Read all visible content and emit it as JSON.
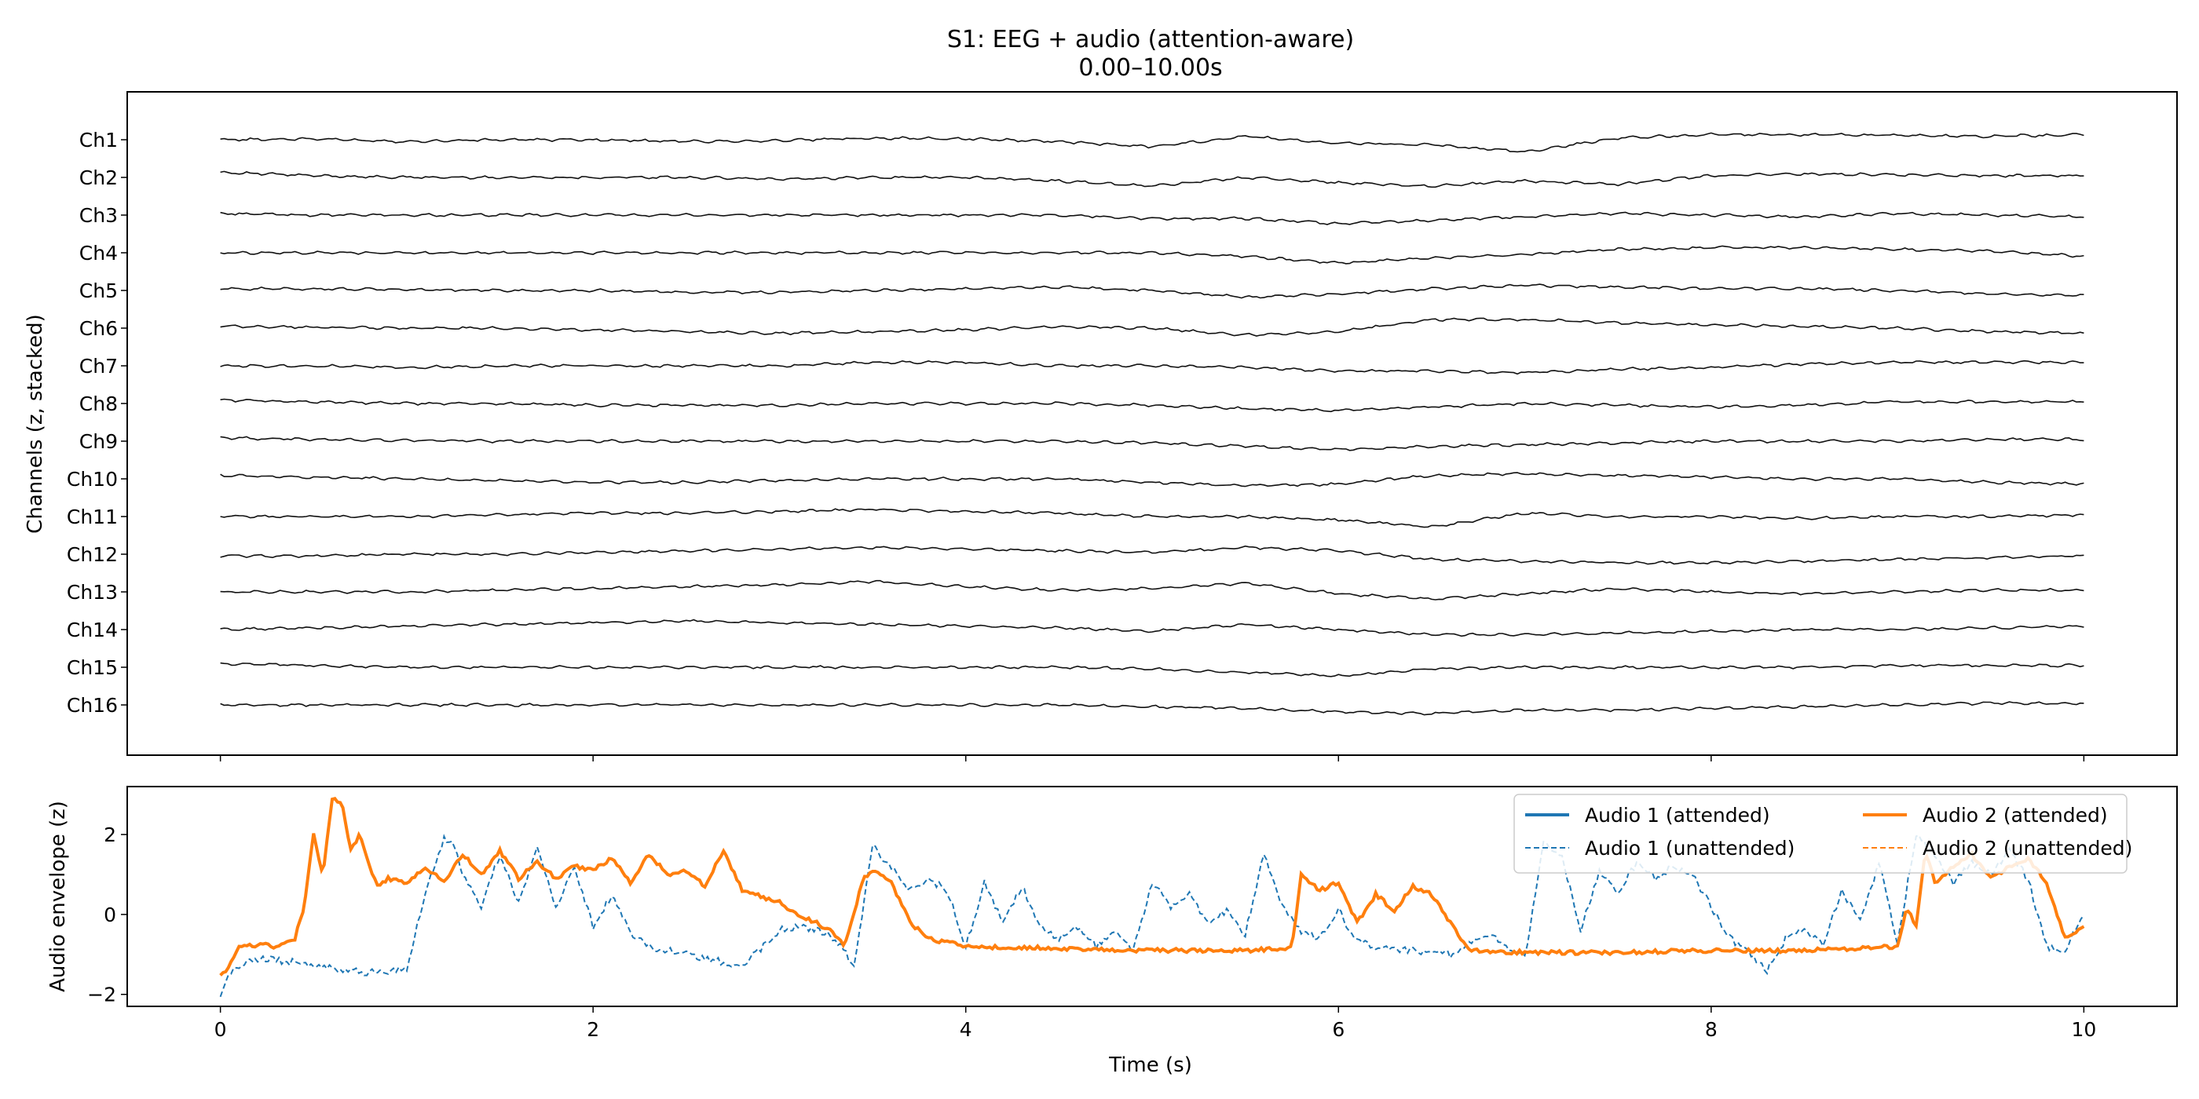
{
  "figure": {
    "title_line1": "S1: EEG + audio (attention-aware)",
    "title_line2": "0.00–10.00s"
  },
  "chart_data": [
    {
      "type": "line",
      "panel": "eeg",
      "title": "S1: EEG + audio (attention-aware)",
      "subtitle": "0.00–10.00s",
      "ylabel": "Channels (z, stacked)",
      "xlim": [
        -0.5,
        10.5
      ],
      "grid": false,
      "channels": [
        "Ch1",
        "Ch2",
        "Ch3",
        "Ch4",
        "Ch5",
        "Ch6",
        "Ch7",
        "Ch8",
        "Ch9",
        "Ch10",
        "Ch11",
        "Ch12",
        "Ch13",
        "Ch14",
        "Ch15",
        "Ch16"
      ],
      "x": [
        0,
        0.5,
        1,
        1.5,
        2,
        2.5,
        3,
        3.5,
        4,
        4.5,
        5,
        5.5,
        6,
        6.5,
        7,
        7.5,
        8,
        8.5,
        9,
        9.5,
        10
      ],
      "traces": [
        [
          0,
          0.05,
          -0.1,
          0,
          0,
          -0.1,
          -0.05,
          0.1,
          0.05,
          -0.1,
          -0.4,
          0.2,
          -0.2,
          -0.3,
          -0.7,
          0.1,
          0.3,
          0.3,
          0.25,
          0.2,
          0.3
        ],
        [
          0.3,
          0.1,
          0,
          0,
          0,
          0,
          -0.1,
          0,
          0,
          -0.2,
          -0.5,
          0,
          -0.3,
          -0.5,
          -0.2,
          -0.4,
          0.1,
          0.2,
          0.15,
          0.1,
          0.1
        ],
        [
          0.1,
          0,
          0,
          0,
          0,
          0,
          0,
          0,
          0,
          0,
          -0.2,
          -0.2,
          -0.5,
          -0.3,
          -0.1,
          0.1,
          0,
          -0.1,
          0.1,
          0,
          -0.1
        ],
        [
          0,
          0,
          0,
          0,
          0,
          0,
          0,
          0,
          0,
          0,
          0,
          -0.2,
          -0.6,
          -0.3,
          -0.1,
          0.2,
          0.3,
          0.3,
          0.2,
          0.1,
          -0.2
        ],
        [
          0.1,
          0.1,
          0.05,
          0,
          0,
          -0.1,
          -0.1,
          0,
          0.1,
          0.2,
          0,
          -0.4,
          -0.2,
          0.1,
          0.3,
          0.2,
          0.1,
          0.1,
          0,
          -0.2,
          -0.3
        ],
        [
          0.1,
          0.05,
          0,
          0,
          -0.1,
          -0.2,
          -0.3,
          -0.2,
          -0.1,
          0.1,
          0,
          -0.4,
          -0.2,
          0.5,
          0.5,
          0.3,
          0.2,
          0.1,
          0,
          -0.2,
          -0.3
        ],
        [
          0,
          0,
          -0.1,
          0,
          0,
          0,
          0,
          0.2,
          0.2,
          0,
          0,
          -0.1,
          -0.3,
          -0.3,
          -0.4,
          -0.2,
          -0.1,
          0.1,
          0.2,
          0.2,
          0.2
        ],
        [
          0.2,
          0.1,
          0,
          0,
          -0.1,
          -0.1,
          -0.1,
          0,
          0,
          0,
          -0.1,
          -0.3,
          -0.4,
          -0.2,
          0,
          -0.1,
          -0.2,
          -0.1,
          0.1,
          0.1,
          0.1
        ],
        [
          0.2,
          0.1,
          0.05,
          0,
          0,
          0,
          0,
          0,
          0,
          0,
          -0.1,
          -0.3,
          -0.5,
          -0.3,
          -0.2,
          -0.1,
          0,
          0,
          0,
          0.1,
          0.1
        ],
        [
          0.2,
          0.1,
          0,
          -0.1,
          -0.2,
          -0.2,
          -0.1,
          0,
          0,
          0,
          -0.2,
          -0.4,
          -0.3,
          0.2,
          0.3,
          0.2,
          0.1,
          0,
          0,
          -0.2,
          -0.3
        ],
        [
          0,
          0,
          0,
          0.1,
          0.2,
          0.2,
          0.3,
          0.4,
          0.3,
          0.2,
          0,
          0,
          -0.2,
          -0.6,
          0.2,
          0,
          0,
          -0.1,
          0,
          0,
          0.1
        ],
        [
          -0.1,
          -0.1,
          0,
          0,
          0.1,
          0.2,
          0.3,
          0.4,
          0.3,
          0.2,
          0.1,
          0.4,
          0.2,
          -0.3,
          -0.4,
          -0.5,
          -0.5,
          -0.4,
          -0.3,
          -0.2,
          -0.1
        ],
        [
          0,
          0,
          0,
          0.1,
          0.2,
          0.3,
          0.4,
          0.6,
          0.3,
          0.1,
          0.2,
          0.5,
          -0.1,
          -0.4,
          -0.1,
          0.2,
          0,
          -0.1,
          0,
          0.1,
          0.1
        ],
        [
          0,
          0.1,
          0.2,
          0.3,
          0.4,
          0.5,
          0.4,
          0.3,
          0.2,
          0.1,
          -0.1,
          0.3,
          0,
          -0.3,
          -0.3,
          -0.2,
          -0.1,
          0,
          0,
          0.1,
          0.2
        ],
        [
          0.2,
          0.1,
          0,
          0,
          0,
          0,
          0,
          0,
          0,
          0,
          -0.1,
          -0.3,
          -0.5,
          -0.1,
          0,
          0,
          0,
          0,
          0.1,
          0.1,
          0.1
        ],
        [
          0,
          0,
          0,
          0,
          0,
          0,
          0,
          0,
          0,
          0,
          -0.1,
          -0.2,
          -0.4,
          -0.5,
          -0.3,
          -0.3,
          -0.2,
          -0.1,
          0,
          0.1,
          0.1
        ]
      ]
    },
    {
      "type": "line",
      "panel": "audio",
      "xlabel": "Time (s)",
      "ylabel": "Audio envelope (z)",
      "xlim": [
        -0.5,
        10.5
      ],
      "ylim": [
        -2.3,
        3.2
      ],
      "xticks": [
        0,
        2,
        4,
        6,
        8,
        10
      ],
      "yticks": [
        -2,
        0,
        2
      ],
      "grid": false,
      "legend": "top-right",
      "series": [
        {
          "name": "Audio 1 (attended)",
          "color": "#1f77b4",
          "style": "solid",
          "x": [],
          "values": []
        },
        {
          "name": "Audio 1 (unattended)",
          "color": "#1f77b4",
          "style": "dashed",
          "x": [
            0,
            0.02,
            0.05,
            0.1,
            0.2,
            0.4,
            0.6,
            0.8,
            1.0,
            1.1,
            1.2,
            1.25,
            1.3,
            1.4,
            1.5,
            1.6,
            1.7,
            1.8,
            1.9,
            2.0,
            2.1,
            2.2,
            2.3,
            2.5,
            2.6,
            2.8,
            3.0,
            3.1,
            3.2,
            3.3,
            3.4,
            3.5,
            3.6,
            3.7,
            3.8,
            3.9,
            4.0,
            4.1,
            4.2,
            4.3,
            4.4,
            4.5,
            4.6,
            4.7,
            4.8,
            4.9,
            5.0,
            5.1,
            5.2,
            5.3,
            5.4,
            5.5,
            5.6,
            5.7,
            5.8,
            5.9,
            6.0,
            6.1,
            6.2,
            6.4,
            6.6,
            6.8,
            7.0,
            7.1,
            7.2,
            7.3,
            7.4,
            7.5,
            7.6,
            7.7,
            7.8,
            7.9,
            8.0,
            8.1,
            8.2,
            8.3,
            8.4,
            8.5,
            8.6,
            8.7,
            8.8,
            8.9,
            9.0,
            9.1,
            9.2,
            9.3,
            9.4,
            9.5,
            9.6,
            9.7,
            9.8,
            9.9,
            10.0
          ],
          "values": [
            -2.1,
            -1.8,
            -1.5,
            -1.3,
            -1.1,
            -1.2,
            -1.35,
            -1.45,
            -1.4,
            0.6,
            1.9,
            1.8,
            1.0,
            0.2,
            1.5,
            0.3,
            1.6,
            0.2,
            1.2,
            -0.3,
            0.5,
            -0.5,
            -0.8,
            -1.0,
            -1.1,
            -1.3,
            -0.4,
            -0.3,
            -0.4,
            -0.6,
            -1.3,
            1.7,
            1.2,
            0.6,
            0.9,
            0.6,
            -0.8,
            0.8,
            -0.2,
            0.7,
            -0.3,
            -0.6,
            -0.3,
            -0.8,
            -0.4,
            -0.9,
            0.8,
            0.2,
            0.5,
            -0.2,
            0.1,
            -0.5,
            1.5,
            0.2,
            -0.4,
            -0.6,
            0.1,
            -0.7,
            -0.8,
            -0.9,
            -1.0,
            -0.5,
            -1.1,
            1.8,
            1.4,
            -0.4,
            1.1,
            0.5,
            1.3,
            0.9,
            1.2,
            1.0,
            0.2,
            -0.6,
            -0.9,
            -1.4,
            -0.6,
            -0.3,
            -0.8,
            0.6,
            -0.2,
            1.3,
            -0.7,
            2.0,
            1.5,
            0.8,
            1.3,
            1.0,
            1.6,
            0.9,
            -0.8,
            -0.9,
            0.0
          ]
        },
        {
          "name": "Audio 2 (attended)",
          "color": "#ff7f0e",
          "style": "solid",
          "x": [
            0,
            0.05,
            0.1,
            0.15,
            0.2,
            0.3,
            0.4,
            0.45,
            0.5,
            0.55,
            0.6,
            0.65,
            0.7,
            0.75,
            0.8,
            0.85,
            0.9,
            1.0,
            1.1,
            1.2,
            1.3,
            1.4,
            1.5,
            1.6,
            1.7,
            1.8,
            1.9,
            2.0,
            2.1,
            2.2,
            2.3,
            2.4,
            2.5,
            2.6,
            2.7,
            2.8,
            3.0,
            3.1,
            3.2,
            3.3,
            3.35,
            3.45,
            3.5,
            3.6,
            3.7,
            3.8,
            4.0,
            4.5,
            5.0,
            5.5,
            5.75,
            5.8,
            5.9,
            6.0,
            6.1,
            6.2,
            6.3,
            6.4,
            6.5,
            6.6,
            6.7,
            7.0,
            7.5,
            8.0,
            8.5,
            9.0,
            9.05,
            9.1,
            9.15,
            9.2,
            9.3,
            9.4,
            9.5,
            9.6,
            9.7,
            9.8,
            9.9,
            10.0
          ],
          "values": [
            -1.5,
            -1.3,
            -0.8,
            -0.8,
            -0.75,
            -0.8,
            -0.6,
            0.2,
            2.0,
            1.0,
            2.9,
            2.8,
            1.6,
            2.0,
            1.2,
            0.7,
            0.9,
            0.8,
            1.2,
            0.8,
            1.5,
            1.0,
            1.6,
            0.9,
            1.3,
            0.9,
            1.2,
            1.1,
            1.4,
            0.8,
            1.5,
            1.0,
            1.1,
            0.7,
            1.6,
            0.6,
            0.3,
            0.0,
            -0.2,
            -0.5,
            -0.8,
            0.9,
            1.1,
            0.8,
            -0.2,
            -0.6,
            -0.8,
            -0.85,
            -0.9,
            -0.9,
            -0.85,
            1.0,
            0.6,
            0.8,
            -0.2,
            0.5,
            0.1,
            0.7,
            0.5,
            -0.2,
            -0.9,
            -0.95,
            -0.95,
            -0.9,
            -0.9,
            -0.8,
            0.2,
            -0.3,
            1.6,
            0.8,
            1.2,
            1.5,
            0.9,
            1.2,
            1.4,
            0.8,
            -0.6,
            -0.3
          ]
        },
        {
          "name": "Audio 2 (unattended)",
          "color": "#ff7f0e",
          "style": "dashed",
          "x": [],
          "values": []
        }
      ]
    }
  ]
}
